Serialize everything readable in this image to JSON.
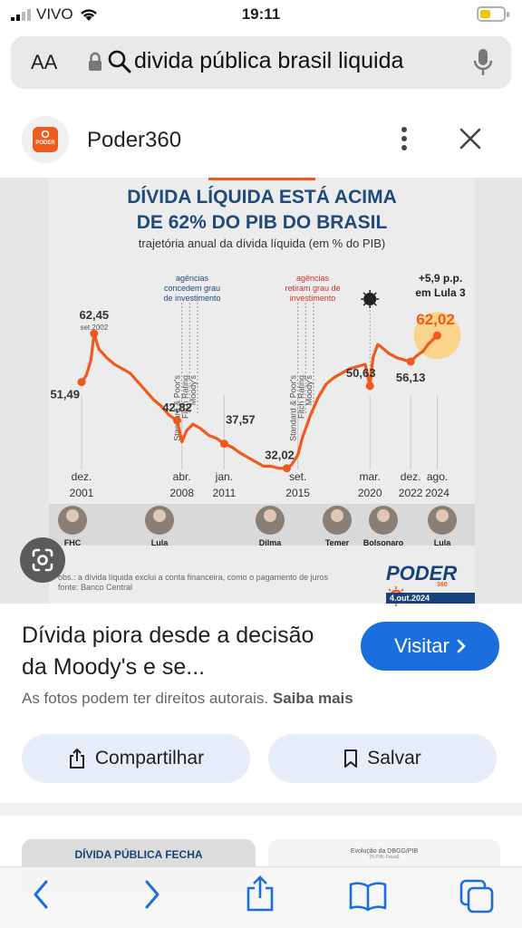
{
  "status_bar": {
    "carrier": "VIVO",
    "time": "19:11"
  },
  "url_bar": {
    "text_size_button": "AA",
    "query": "divida pública brasil liquida"
  },
  "source": {
    "name": "Poder360",
    "logo_text": "PODER"
  },
  "infographic": {
    "title_line1": "DÍVIDA LÍQUIDA ESTÁ ACIMA",
    "title_line2": "DE 62% DO PIB DO BRASIL",
    "subtitle": "trajetória anual da dívida líquida (em % do PIB)",
    "note_left_lines": [
      "agências",
      "concedem grau",
      "de investimento"
    ],
    "note_right_lines": [
      "agências",
      "retiram grau de",
      "investimento"
    ],
    "agencies": [
      "Standard & Poor's",
      "Fitch Rating",
      "Moody's"
    ],
    "lula3_lines": [
      "+5,9 p.p.",
      "em Lula 3"
    ],
    "peak_sub": "set.2002",
    "presidents": [
      "FHC",
      "Lula",
      "Dilma",
      "Temer",
      "Bolsonaro",
      "Lula"
    ],
    "obs": "obs.: a dívida líquida exclui a conta financeira, como o pagamento de juros",
    "fonte": "fonte: Banco Central",
    "brand": "PODER",
    "brand_sub": "360",
    "date": "4.out.2024",
    "colors": {
      "title": "#1f4a7a",
      "line": "#f05a1e",
      "accent_red": "#d0302a",
      "highlight": "#fbd38a"
    }
  },
  "chart_data": {
    "type": "line",
    "title": "DÍVIDA LÍQUIDA ESTÁ ACIMA DE 62% DO PIB DO BRASIL",
    "subtitle": "trajetória anual da dívida líquida (em % do PIB)",
    "ylim": [
      25,
      68
    ],
    "xlim": [
      2001.9,
      2024.8
    ],
    "x_ticks": [
      {
        "x": 2001.9,
        "l1": "dez.",
        "l2": "2001"
      },
      {
        "x": 2008.3,
        "l1": "abr.",
        "l2": "2008"
      },
      {
        "x": 2011.0,
        "l1": "jan.",
        "l2": "2011"
      },
      {
        "x": 2015.7,
        "l1": "set.",
        "l2": "2015"
      },
      {
        "x": 2020.3,
        "l1": "mar.",
        "l2": "2020"
      },
      {
        "x": 2022.9,
        "l1": "dez.",
        "l2": "2022"
      },
      {
        "x": 2024.6,
        "l1": "ago.",
        "l2": "2024"
      }
    ],
    "x": [
      2001.9,
      2002.2,
      2002.5,
      2002.7,
      2003.0,
      2003.5,
      2004.0,
      2004.5,
      2005.0,
      2005.5,
      2006.0,
      2006.5,
      2007.0,
      2007.5,
      2008.0,
      2008.3,
      2008.6,
      2009.0,
      2009.5,
      2010.0,
      2010.5,
      2011.0,
      2011.5,
      2012.0,
      2012.5,
      2013.0,
      2013.5,
      2014.0,
      2014.5,
      2015.0,
      2015.3,
      2015.7,
      2016.0,
      2016.5,
      2017.0,
      2017.5,
      2018.0,
      2018.5,
      2019.0,
      2019.5,
      2020.0,
      2020.3,
      2020.5,
      2020.8,
      2021.0,
      2021.5,
      2022.0,
      2022.5,
      2022.9,
      2023.3,
      2023.7,
      2024.0,
      2024.3,
      2024.6
    ],
    "values": [
      51.49,
      53.0,
      56.5,
      62.45,
      59.0,
      57.0,
      55.5,
      54.5,
      53.5,
      51.5,
      49.5,
      47.5,
      46.0,
      44.0,
      42.82,
      38.0,
      40.5,
      42.0,
      41.0,
      39.5,
      38.8,
      37.57,
      36.8,
      35.5,
      34.5,
      33.5,
      32.5,
      32.5,
      32.0,
      32.02,
      32.8,
      35.0,
      39.0,
      44.0,
      48.0,
      51.0,
      52.5,
      53.5,
      54.5,
      55.0,
      55.5,
      50.63,
      57.0,
      60.0,
      59.5,
      58.0,
      57.0,
      56.5,
      56.13,
      57.5,
      58.5,
      60.0,
      61.0,
      62.02
    ],
    "labels": [
      {
        "x": 2001.9,
        "y": 51.49,
        "text": "51,49"
      },
      {
        "x": 2002.7,
        "y": 62.45,
        "text": "62,45"
      },
      {
        "x": 2008.0,
        "y": 42.82,
        "text": "42,82"
      },
      {
        "x": 2011.0,
        "y": 37.57,
        "text": "37,57"
      },
      {
        "x": 2015.0,
        "y": 32.02,
        "text": "32,02"
      },
      {
        "x": 2020.3,
        "y": 50.63,
        "text": "50,63"
      },
      {
        "x": 2022.9,
        "y": 56.13,
        "text": "56,13"
      },
      {
        "x": 2024.6,
        "y": 62.02,
        "text": "62,02"
      }
    ]
  },
  "result": {
    "title": "Dívida piora desde a decisão da Moody's e se...",
    "visit_label": "Visitar",
    "rights_text": "As fotos podem ter direitos autorais.",
    "rights_link": "Saiba mais",
    "share_label": "Compartilhar",
    "save_label": "Salvar"
  },
  "more_results": {
    "thumb1_title": "DÍVIDA PÚBLICA FECHA",
    "thumb2_title": "Evolução da DBGG/PIB",
    "thumb2_sub": "(% PIB, Fiscal)"
  }
}
